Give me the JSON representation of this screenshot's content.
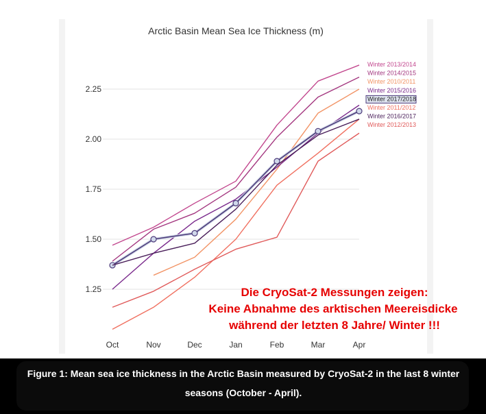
{
  "chart_data": {
    "type": "line",
    "title": "Arctic Basin Mean Sea Ice Thickness (m)",
    "xlabel": "",
    "ylabel": "",
    "categories": [
      "Oct",
      "Nov",
      "Dec",
      "Jan",
      "Feb",
      "Mar",
      "Apr"
    ],
    "yticks": [
      "1.25",
      "1.50",
      "1.75",
      "2.00",
      "2.25"
    ],
    "ylim": [
      1.05,
      2.45
    ],
    "grid": true,
    "legend_position": "right, at line ends",
    "series": [
      {
        "name": "Winter 2013/2014",
        "color": "#c2478e",
        "values": [
          1.47,
          1.56,
          1.68,
          1.79,
          2.07,
          2.29,
          2.37
        ]
      },
      {
        "name": "Winter 2014/2015",
        "color": "#a3367f",
        "values": [
          1.39,
          1.55,
          1.63,
          1.76,
          2.01,
          2.21,
          2.31
        ]
      },
      {
        "name": "Winter 2010/2011",
        "color": "#f29466",
        "values": [
          null,
          1.32,
          1.41,
          1.6,
          1.85,
          2.13,
          2.25
        ]
      },
      {
        "name": "Winter 2015/2016",
        "color": "#7a2a8c",
        "values": [
          1.25,
          1.43,
          1.59,
          1.7,
          1.86,
          2.03,
          2.17
        ]
      },
      {
        "name": "Winter 2017/2018",
        "color": "#4c3a7a",
        "values": [
          1.37,
          1.5,
          1.53,
          1.68,
          1.89,
          2.04,
          2.14
        ],
        "markers": true
      },
      {
        "name": "Winter 2011/2012",
        "color": "#f07060",
        "values": [
          1.05,
          1.16,
          1.31,
          1.5,
          1.77,
          1.93,
          2.1
        ]
      },
      {
        "name": "Winter 2016/2017",
        "color": "#4a1f5a",
        "values": [
          1.37,
          1.43,
          1.48,
          1.65,
          1.87,
          2.02,
          2.1
        ]
      },
      {
        "name": "Winter 2012/2013",
        "color": "#e05a5a",
        "values": [
          1.16,
          1.24,
          1.35,
          1.45,
          1.51,
          1.89,
          2.03
        ]
      }
    ]
  },
  "annotation": {
    "lines": [
      "Die CryoSat-2 Messungen zeigen:",
      "Keine Abnahme des arktischen Meereisdicke",
      "während der letzten 8 Jahre/ Winter !!!"
    ],
    "color": "#e60000"
  },
  "caption": {
    "text": "Figure 1: Mean sea ice thickness in the Arctic Basin measured by CryoSat-2 in the last 8 winter seasons (October - April)."
  }
}
